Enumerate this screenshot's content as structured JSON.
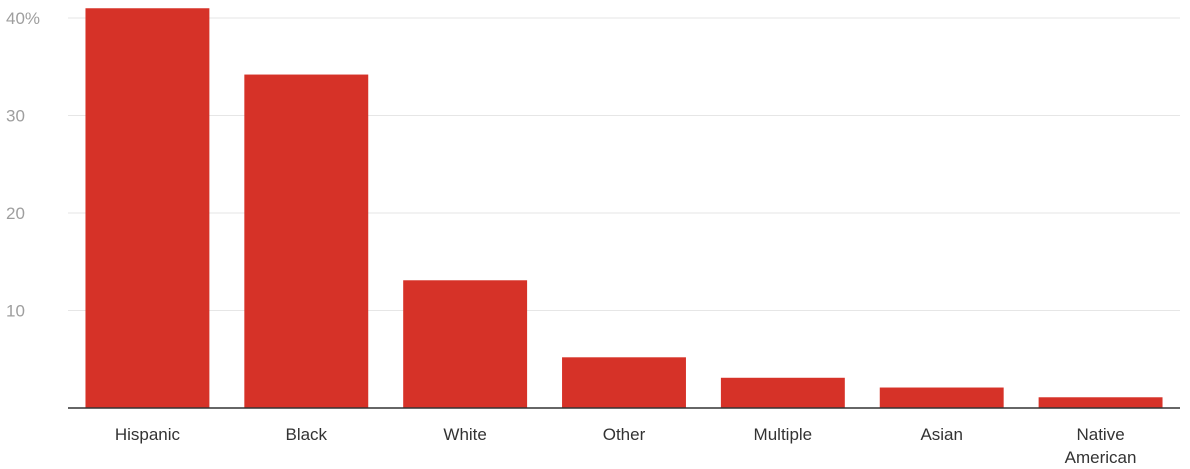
{
  "chart_data": {
    "type": "bar",
    "title": "",
    "xlabel": "",
    "ylabel": "",
    "categories": [
      "Hispanic",
      "Black",
      "White",
      "Other",
      "Multiple",
      "Asian",
      "Native American"
    ],
    "category_label_lines": [
      [
        "Hispanic"
      ],
      [
        "Black"
      ],
      [
        "White"
      ],
      [
        "Other"
      ],
      [
        "Multiple"
      ],
      [
        "Asian"
      ],
      [
        "Native",
        "American"
      ]
    ],
    "values": [
      41,
      34.2,
      13.1,
      5.2,
      3.1,
      2.1,
      1.1
    ],
    "ylim": [
      0,
      40
    ],
    "yticks": [
      10,
      20,
      30,
      40
    ],
    "ytick_labels": [
      "10",
      "20",
      "30",
      "40%"
    ],
    "grid": true,
    "legend": "none",
    "colors": {
      "bar": "#d63228",
      "grid": "#e6e6e6",
      "axis": "#333333",
      "y_tick_text": "#9e9e9e",
      "x_tick_text": "#333333"
    }
  }
}
